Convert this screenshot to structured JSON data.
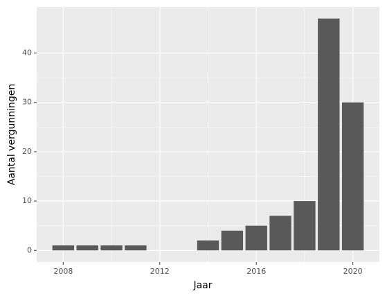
{
  "chart_data": {
    "type": "bar",
    "x": [
      2008,
      2009,
      2010,
      2011,
      2014,
      2015,
      2016,
      2017,
      2018,
      2019,
      2020
    ],
    "values": [
      1,
      1,
      1,
      1,
      2,
      4,
      5,
      7,
      10,
      47,
      30
    ],
    "color": "#595959",
    "xlabel": "Jaar",
    "ylabel": "Aantal vergunningen",
    "xlim": [
      2006.9,
      2021.1
    ],
    "xticks": [
      2008,
      2012,
      2016,
      2020
    ],
    "ylim": [
      -2.35,
      49.35
    ],
    "yticks": [
      0,
      10,
      20,
      30,
      40
    ],
    "grid": true
  }
}
